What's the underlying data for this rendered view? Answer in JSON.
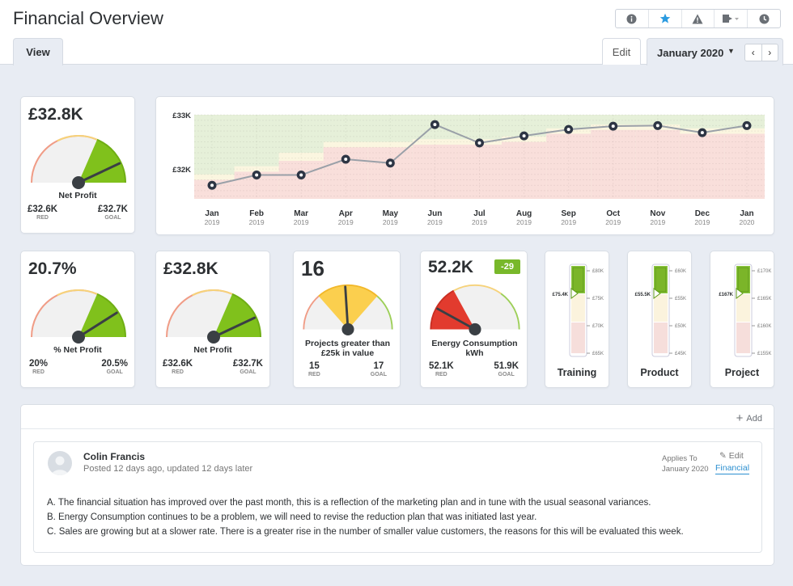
{
  "page": {
    "title": "Financial Overview"
  },
  "toolbar": {
    "icons": [
      "info-icon",
      "star-icon",
      "warning-icon",
      "export-icon",
      "clock-icon"
    ]
  },
  "tabs": {
    "view": "View",
    "edit": "Edit"
  },
  "period": {
    "label": "January 2020",
    "prev": "‹",
    "next": "›"
  },
  "line_card": {
    "chart_data": {
      "type": "line",
      "categories": [
        "Jan 2019",
        "Feb 2019",
        "Mar 2019",
        "Apr 2019",
        "May 2019",
        "Jun 2019",
        "Jul 2019",
        "Aug 2019",
        "Sep 2019",
        "Oct 2019",
        "Nov 2019",
        "Dec 2019",
        "Jan 2020"
      ],
      "x_month": [
        "Jan",
        "Feb",
        "Mar",
        "Apr",
        "May",
        "Jun",
        "Jul",
        "Aug",
        "Sep",
        "Oct",
        "Nov",
        "Dec",
        "Jan"
      ],
      "x_year": [
        "2019",
        "2019",
        "2019",
        "2019",
        "2019",
        "2019",
        "2019",
        "2019",
        "2019",
        "2019",
        "2019",
        "2019",
        "2020"
      ],
      "values": [
        31.7,
        31.89,
        31.89,
        32.18,
        32.11,
        32.82,
        32.48,
        32.61,
        32.73,
        32.79,
        32.8,
        32.67,
        32.8
      ],
      "goal": [
        31.9,
        32.05,
        32.3,
        32.5,
        32.5,
        32.55,
        32.55,
        32.6,
        32.75,
        32.82,
        32.82,
        32.75,
        32.75
      ],
      "red": [
        31.8,
        31.95,
        32.15,
        32.4,
        32.4,
        32.45,
        32.45,
        32.5,
        32.65,
        32.72,
        32.72,
        32.65,
        32.65
      ],
      "y_ticks": [
        "£32K",
        "£33K"
      ],
      "ylim": [
        31.45,
        33.0
      ]
    }
  },
  "kpi1": {
    "value": "£32.8K",
    "label": "Net Profit",
    "red_value": "£32.6K",
    "red_label": "RED",
    "goal_value": "£32.7K",
    "goal_label": "GOAL",
    "level": 0.86
  },
  "kpi2": {
    "value": "20.7%",
    "label": "% Net Profit",
    "red_value": "20%",
    "red_label": "RED",
    "goal_value": "20.5%",
    "goal_label": "GOAL",
    "level": 0.82
  },
  "kpi3": {
    "value": "£32.8K",
    "label": "Net Profit",
    "red_value": "£32.6K",
    "red_label": "RED",
    "goal_value": "£32.7K",
    "goal_label": "GOAL",
    "level": 0.86
  },
  "kpi4": {
    "value": "16",
    "label": "Projects greater than £25k in value",
    "red_value": "15",
    "red_label": "RED",
    "goal_value": "17",
    "goal_label": "GOAL",
    "level": 0.48
  },
  "kpi5": {
    "value": "52.2K",
    "badge": "-29",
    "label": "Energy Consumption kWh",
    "red_value": "52.1K",
    "red_label": "RED",
    "goal_value": "51.9K",
    "goal_label": "GOAL",
    "level": 0.16
  },
  "thermo": [
    {
      "title": "Training",
      "marker": "£75.4K",
      "ticks": [
        "£80K",
        "£75K",
        "£70K",
        "£65K"
      ]
    },
    {
      "title": "Product",
      "marker": "£55.5K",
      "ticks": [
        "£60K",
        "£55K",
        "£50K",
        "£45K"
      ]
    },
    {
      "title": "Project",
      "marker": "£167K",
      "ticks": [
        "£170K",
        "£165K",
        "£160K",
        "£155K"
      ]
    }
  ],
  "comments": {
    "add": "Add",
    "author": "Colin Francis",
    "posted": "Posted 12 days ago, updated 12 days later",
    "applies_label": "Applies To",
    "applies_period": "January 2020",
    "edit": "Edit",
    "link": "Financial",
    "lines": [
      "A. The financial situation has improved over the past month, this is a reflection of the marketing plan and in tune with the usual seasonal variances.",
      "B. Energy Consumption continues to be a problem, we will need to revise the reduction plan that was initiated last year.",
      "C. Sales are growing but at a slower rate. There is a greater rise in the number of smaller value customers, the reasons for this will be evaluated this week."
    ]
  }
}
